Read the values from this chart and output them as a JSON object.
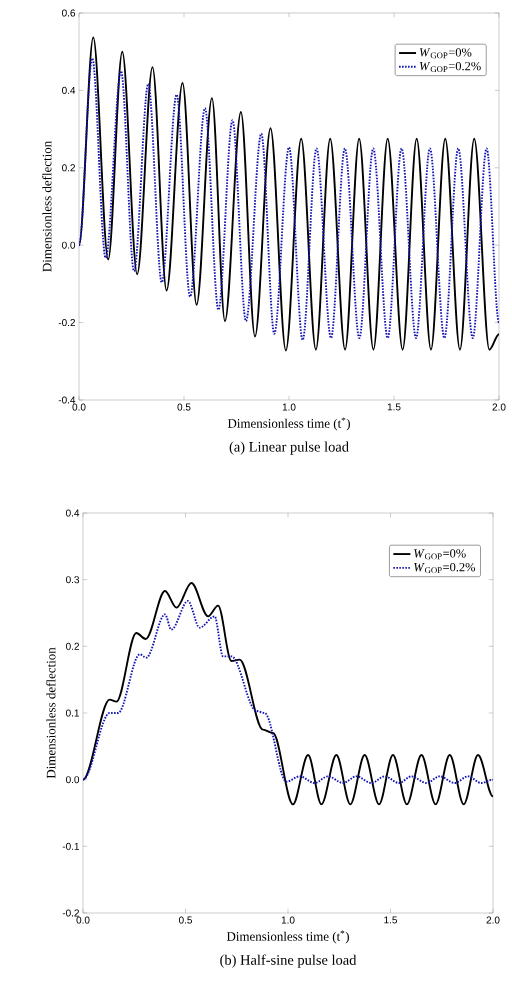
{
  "chart_data": [
    {
      "type": "line",
      "title": "(a) Linear pulse load",
      "xlabel": "Dimensionless time (t$^{*}$)",
      "ylabel": "Dimensionless deflection",
      "xlim": [
        0,
        2
      ],
      "ylim": [
        -0.4,
        0.6
      ],
      "xticks": [
        {
          "value": 0,
          "label": "0.0"
        },
        {
          "value": 0.5,
          "label": "0.5"
        },
        {
          "value": 1,
          "label": "1.0"
        },
        {
          "value": 1.5,
          "label": "1.5"
        },
        {
          "value": 2,
          "label": "2.0"
        }
      ],
      "yticks": [
        {
          "value": -0.4,
          "label": "-0.4"
        },
        {
          "value": -0.2,
          "label": "-0.2"
        },
        {
          "value": 0,
          "label": "0.0"
        },
        {
          "value": 0.2,
          "label": "0.2"
        },
        {
          "value": 0.4,
          "label": "0.4"
        },
        {
          "value": 0.6,
          "label": "0.6"
        }
      ],
      "legend": "top right",
      "series": [
        {
          "name": "*W*$_{GOP}$=0%",
          "color": "#000000",
          "line_style": "solid",
          "x": [
            0,
            0.068,
            0.139,
            0.206,
            0.277,
            0.35,
            0.417,
            0.493,
            0.56,
            0.633,
            0.695,
            0.771,
            0.838,
            0.912,
            0.985,
            1.058,
            1.128,
            1.196,
            1.267,
            1.334,
            1.402,
            1.47,
            1.541,
            1.608,
            1.676,
            1.744,
            1.814,
            1.882,
            1.954,
            2.0
          ],
          "values": [
            0,
            0.537,
            -0.037,
            0.5,
            -0.075,
            0.46,
            -0.117,
            0.419,
            -0.154,
            0.38,
            -0.196,
            0.344,
            -0.236,
            0.302,
            -0.272,
            0.275,
            -0.27,
            0.275,
            -0.27,
            0.275,
            -0.27,
            0.275,
            -0.27,
            0.275,
            -0.27,
            0.275,
            -0.27,
            0.275,
            -0.27,
            -0.23
          ]
        },
        {
          "name": "*W*$_{GOP}$=0.2%",
          "color": "#1414b4",
          "line_style": "dotted",
          "x": [
            0,
            0.063,
            0.127,
            0.2,
            0.262,
            0.33,
            0.394,
            0.465,
            0.529,
            0.6,
            0.664,
            0.731,
            0.795,
            0.868,
            0.93,
            1.0,
            1.065,
            1.131,
            1.2,
            1.266,
            1.335,
            1.401,
            1.47,
            1.536,
            1.605,
            1.671,
            1.74,
            1.806,
            1.875,
            1.941,
            2.0
          ],
          "values": [
            0,
            0.483,
            -0.033,
            0.45,
            -0.067,
            0.417,
            -0.096,
            0.389,
            -0.133,
            0.354,
            -0.167,
            0.323,
            -0.196,
            0.288,
            -0.229,
            0.253,
            -0.245,
            0.25,
            -0.24,
            0.25,
            -0.24,
            0.25,
            -0.24,
            0.25,
            -0.24,
            0.25,
            -0.24,
            0.25,
            -0.24,
            0.25,
            -0.2
          ]
        }
      ]
    },
    {
      "type": "line",
      "title": "(b) Half-sine pulse load",
      "xlabel": "Dimensionless time (t$^{*}$)",
      "ylabel": "Dimensionless deflection",
      "xlim": [
        0,
        2
      ],
      "ylim": [
        -0.2,
        0.4
      ],
      "xticks": [
        {
          "value": 0,
          "label": "0.0"
        },
        {
          "value": 0.5,
          "label": "0.5"
        },
        {
          "value": 1,
          "label": "1.0"
        },
        {
          "value": 1.5,
          "label": "1.5"
        },
        {
          "value": 2,
          "label": "2.0"
        }
      ],
      "yticks": [
        {
          "value": -0.2,
          "label": "-0.2"
        },
        {
          "value": -0.1,
          "label": "-0.1"
        },
        {
          "value": 0,
          "label": "0.0"
        },
        {
          "value": 0.1,
          "label": "0.1"
        },
        {
          "value": 0.2,
          "label": "0.2"
        },
        {
          "value": 0.3,
          "label": "0.3"
        },
        {
          "value": 0.4,
          "label": "0.4"
        }
      ],
      "legend": "top right",
      "series": [
        {
          "name": "*W*$_{GOP}$=0%",
          "color": "#000000",
          "line_style": "solid",
          "x": [
            0,
            0.13,
            0.163,
            0.26,
            0.306,
            0.4,
            0.456,
            0.529,
            0.61,
            0.659,
            0.724,
            0.764,
            0.878,
            0.927,
            1.024,
            1.098,
            1.163,
            1.236,
            1.304,
            1.374,
            1.444,
            1.512,
            1.58,
            1.651,
            1.72,
            1.789,
            1.857,
            1.927,
            2.0
          ],
          "values": [
            0,
            0.12,
            0.117,
            0.22,
            0.211,
            0.283,
            0.258,
            0.295,
            0.245,
            0.261,
            0.178,
            0.18,
            0.075,
            0.07,
            -0.037,
            0.037,
            -0.037,
            0.037,
            -0.037,
            0.037,
            -0.037,
            0.037,
            -0.037,
            0.037,
            -0.037,
            0.037,
            -0.037,
            0.037,
            -0.025
          ]
        },
        {
          "name": "*W*$_{GOP}$=0.2%",
          "color": "#1414b4",
          "line_style": "dotted",
          "x": [
            0,
            0.13,
            0.171,
            0.277,
            0.309,
            0.4,
            0.431,
            0.512,
            0.569,
            0.642,
            0.683,
            0.724,
            0.846,
            0.886,
            0.992,
            1.057,
            1.13,
            1.195,
            1.268,
            1.334,
            1.407,
            1.472,
            1.541,
            1.602,
            1.675,
            1.74,
            1.813,
            1.878,
            1.943,
            2.0
          ],
          "values": [
            0,
            0.1,
            0.1,
            0.188,
            0.183,
            0.248,
            0.225,
            0.268,
            0.228,
            0.245,
            0.185,
            0.185,
            0.103,
            0.1,
            -0.003,
            0.005,
            -0.005,
            0.005,
            -0.005,
            0.005,
            -0.005,
            0.005,
            -0.005,
            0.005,
            -0.005,
            0.005,
            -0.005,
            0.005,
            -0.005,
            0
          ]
        }
      ]
    }
  ]
}
